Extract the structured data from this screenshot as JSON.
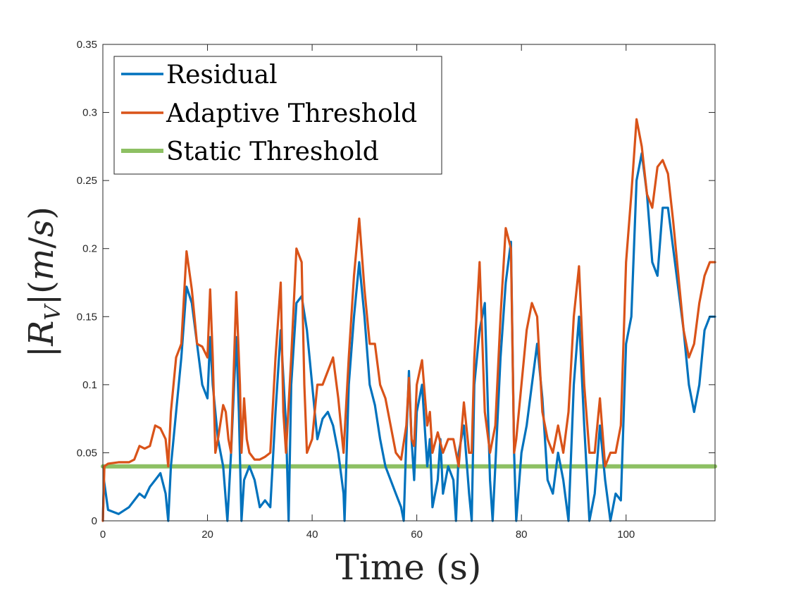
{
  "chart_data": {
    "type": "line",
    "xlabel": "Time (s)",
    "ylabel": "|R_V|(m/s)",
    "ylabel_parts": {
      "open": "|",
      "R": "R",
      "sub": "V",
      "mid": "|(",
      "m": "m",
      "slash": "/",
      "s": "s",
      "close": ")"
    },
    "xlim": [
      0,
      117
    ],
    "ylim": [
      0,
      0.35
    ],
    "x_ticks": [
      0,
      20,
      40,
      60,
      80,
      100
    ],
    "x_tick_labels": [
      "0",
      "20",
      "40",
      "60",
      "80",
      "100"
    ],
    "y_ticks": [
      0,
      0.05,
      0.1,
      0.15,
      0.2,
      0.25,
      0.3,
      0.35
    ],
    "y_tick_labels": [
      "0",
      "0.05",
      "0.1",
      "0.15",
      "0.2",
      "0.25",
      "0.3",
      "0.35"
    ],
    "grid": false,
    "legend_position": "top-left",
    "series": [
      {
        "name": "Residual",
        "color": "#0072BD",
        "points": [
          [
            0,
            0.0
          ],
          [
            0.2,
            0.03
          ],
          [
            1,
            0.008
          ],
          [
            3,
            0.005
          ],
          [
            5,
            0.01
          ],
          [
            7,
            0.02
          ],
          [
            8,
            0.017
          ],
          [
            9,
            0.025
          ],
          [
            10,
            0.03
          ],
          [
            11,
            0.035
          ],
          [
            12,
            0.02
          ],
          [
            12.5,
            0.0
          ],
          [
            13,
            0.04
          ],
          [
            14,
            0.08
          ],
          [
            15,
            0.12
          ],
          [
            16,
            0.172
          ],
          [
            17,
            0.16
          ],
          [
            18,
            0.13
          ],
          [
            19,
            0.1
          ],
          [
            20,
            0.09
          ],
          [
            20.5,
            0.135
          ],
          [
            21,
            0.1
          ],
          [
            22,
            0.06
          ],
          [
            23,
            0.04
          ],
          [
            23.8,
            0.0
          ],
          [
            24.5,
            0.05
          ],
          [
            25.5,
            0.135
          ],
          [
            26,
            0.08
          ],
          [
            26.5,
            0.0
          ],
          [
            27,
            0.03
          ],
          [
            28,
            0.04
          ],
          [
            29,
            0.03
          ],
          [
            30,
            0.01
          ],
          [
            31,
            0.015
          ],
          [
            32,
            0.01
          ],
          [
            33,
            0.08
          ],
          [
            34,
            0.14
          ],
          [
            35,
            0.07
          ],
          [
            35.5,
            0.0
          ],
          [
            36,
            0.1
          ],
          [
            37,
            0.16
          ],
          [
            38,
            0.165
          ],
          [
            39,
            0.14
          ],
          [
            40,
            0.1
          ],
          [
            41,
            0.06
          ],
          [
            42,
            0.075
          ],
          [
            43,
            0.08
          ],
          [
            44,
            0.07
          ],
          [
            45,
            0.05
          ],
          [
            46,
            0.02
          ],
          [
            46.2,
            0.0
          ],
          [
            47,
            0.1
          ],
          [
            48,
            0.15
          ],
          [
            49,
            0.19
          ],
          [
            50,
            0.15
          ],
          [
            51,
            0.1
          ],
          [
            52,
            0.085
          ],
          [
            53,
            0.06
          ],
          [
            54,
            0.04
          ],
          [
            55,
            0.03
          ],
          [
            56,
            0.02
          ],
          [
            57,
            0.01
          ],
          [
            57.5,
            0.0
          ],
          [
            58,
            0.06
          ],
          [
            58.5,
            0.11
          ],
          [
            59,
            0.06
          ],
          [
            59.5,
            0.03
          ],
          [
            60,
            0.08
          ],
          [
            61,
            0.1
          ],
          [
            62,
            0.04
          ],
          [
            62.5,
            0.06
          ],
          [
            63,
            0.01
          ],
          [
            64,
            0.03
          ],
          [
            64.5,
            0.06
          ],
          [
            65,
            0.02
          ],
          [
            66,
            0.04
          ],
          [
            67,
            0.03
          ],
          [
            67.5,
            0.0
          ],
          [
            68,
            0.05
          ],
          [
            69,
            0.07
          ],
          [
            70,
            0.02
          ],
          [
            70.5,
            0.0
          ],
          [
            71,
            0.1
          ],
          [
            72,
            0.14
          ],
          [
            73,
            0.16
          ],
          [
            74,
            0.03
          ],
          [
            74.5,
            0.0
          ],
          [
            75,
            0.04
          ],
          [
            76,
            0.12
          ],
          [
            77,
            0.175
          ],
          [
            78,
            0.205
          ],
          [
            78.6,
            0.05
          ],
          [
            79,
            0.0
          ],
          [
            80,
            0.05
          ],
          [
            81,
            0.07
          ],
          [
            82,
            0.1
          ],
          [
            83,
            0.13
          ],
          [
            84,
            0.09
          ],
          [
            85,
            0.03
          ],
          [
            86,
            0.02
          ],
          [
            87,
            0.05
          ],
          [
            88,
            0.03
          ],
          [
            89,
            0.0
          ],
          [
            90,
            0.1
          ],
          [
            91,
            0.15
          ],
          [
            92,
            0.07
          ],
          [
            93,
            0.0
          ],
          [
            94,
            0.02
          ],
          [
            95,
            0.07
          ],
          [
            96,
            0.03
          ],
          [
            97,
            0.0
          ],
          [
            98,
            0.02
          ],
          [
            99,
            0.015
          ],
          [
            100,
            0.13
          ],
          [
            101,
            0.15
          ],
          [
            102,
            0.25
          ],
          [
            103,
            0.27
          ],
          [
            104,
            0.24
          ],
          [
            105,
            0.19
          ],
          [
            106,
            0.18
          ],
          [
            107,
            0.23
          ],
          [
            108,
            0.23
          ],
          [
            109,
            0.2
          ],
          [
            110,
            0.17
          ],
          [
            111,
            0.14
          ],
          [
            112,
            0.1
          ],
          [
            113,
            0.08
          ],
          [
            114,
            0.1
          ],
          [
            115,
            0.14
          ],
          [
            116,
            0.15
          ],
          [
            117,
            0.15
          ]
        ]
      },
      {
        "name": "Adaptive Threshold",
        "color": "#D95319",
        "points": [
          [
            0,
            0.0
          ],
          [
            0.3,
            0.04
          ],
          [
            1,
            0.042
          ],
          [
            3,
            0.043
          ],
          [
            5,
            0.043
          ],
          [
            6,
            0.045
          ],
          [
            7,
            0.055
          ],
          [
            8,
            0.053
          ],
          [
            9,
            0.055
          ],
          [
            10,
            0.07
          ],
          [
            11,
            0.068
          ],
          [
            12,
            0.06
          ],
          [
            12.5,
            0.04
          ],
          [
            13,
            0.08
          ],
          [
            14,
            0.12
          ],
          [
            15,
            0.13
          ],
          [
            16,
            0.198
          ],
          [
            17,
            0.17
          ],
          [
            18,
            0.13
          ],
          [
            19,
            0.128
          ],
          [
            20,
            0.12
          ],
          [
            20.5,
            0.17
          ],
          [
            21,
            0.12
          ],
          [
            21.5,
            0.05
          ],
          [
            22,
            0.06
          ],
          [
            23,
            0.085
          ],
          [
            23.5,
            0.08
          ],
          [
            24,
            0.06
          ],
          [
            24.5,
            0.05
          ],
          [
            25.5,
            0.168
          ],
          [
            26.2,
            0.1
          ],
          [
            26.5,
            0.05
          ],
          [
            27,
            0.09
          ],
          [
            27.5,
            0.06
          ],
          [
            28,
            0.05
          ],
          [
            29,
            0.045
          ],
          [
            30,
            0.045
          ],
          [
            31,
            0.047
          ],
          [
            32,
            0.05
          ],
          [
            33,
            0.12
          ],
          [
            34,
            0.175
          ],
          [
            34.5,
            0.08
          ],
          [
            35,
            0.05
          ],
          [
            36,
            0.12
          ],
          [
            37,
            0.2
          ],
          [
            38,
            0.19
          ],
          [
            38.5,
            0.1
          ],
          [
            39,
            0.05
          ],
          [
            40,
            0.06
          ],
          [
            41,
            0.1
          ],
          [
            42,
            0.1
          ],
          [
            43,
            0.11
          ],
          [
            44,
            0.12
          ],
          [
            45,
            0.09
          ],
          [
            46,
            0.05
          ],
          [
            47,
            0.12
          ],
          [
            48,
            0.18
          ],
          [
            49,
            0.222
          ],
          [
            50,
            0.17
          ],
          [
            51,
            0.13
          ],
          [
            52,
            0.13
          ],
          [
            53,
            0.1
          ],
          [
            54,
            0.09
          ],
          [
            55,
            0.07
          ],
          [
            56,
            0.05
          ],
          [
            57,
            0.045
          ],
          [
            58,
            0.07
          ],
          [
            58.5,
            0.105
          ],
          [
            59,
            0.06
          ],
          [
            59.5,
            0.055
          ],
          [
            60,
            0.1
          ],
          [
            61,
            0.118
          ],
          [
            62,
            0.07
          ],
          [
            62.5,
            0.08
          ],
          [
            63,
            0.05
          ],
          [
            64,
            0.065
          ],
          [
            65,
            0.05
          ],
          [
            66,
            0.06
          ],
          [
            67,
            0.06
          ],
          [
            68,
            0.04
          ],
          [
            69,
            0.087
          ],
          [
            70,
            0.05
          ],
          [
            70.5,
            0.05
          ],
          [
            71,
            0.12
          ],
          [
            72,
            0.19
          ],
          [
            73,
            0.08
          ],
          [
            74,
            0.05
          ],
          [
            75,
            0.07
          ],
          [
            76,
            0.15
          ],
          [
            77,
            0.215
          ],
          [
            78,
            0.2
          ],
          [
            78.6,
            0.05
          ],
          [
            79,
            0.06
          ],
          [
            80,
            0.1
          ],
          [
            81,
            0.14
          ],
          [
            82,
            0.16
          ],
          [
            83,
            0.15
          ],
          [
            84,
            0.08
          ],
          [
            85,
            0.06
          ],
          [
            86,
            0.05
          ],
          [
            87,
            0.07
          ],
          [
            88,
            0.05
          ],
          [
            89,
            0.08
          ],
          [
            90,
            0.15
          ],
          [
            91,
            0.187
          ],
          [
            92,
            0.1
          ],
          [
            93,
            0.05
          ],
          [
            94,
            0.05
          ],
          [
            95,
            0.09
          ],
          [
            96,
            0.04
          ],
          [
            97,
            0.05
          ],
          [
            98,
            0.05
          ],
          [
            99,
            0.07
          ],
          [
            100,
            0.19
          ],
          [
            101,
            0.24
          ],
          [
            102,
            0.295
          ],
          [
            103,
            0.275
          ],
          [
            104,
            0.24
          ],
          [
            105,
            0.23
          ],
          [
            106,
            0.26
          ],
          [
            107,
            0.265
          ],
          [
            108,
            0.255
          ],
          [
            109,
            0.22
          ],
          [
            110,
            0.18
          ],
          [
            111,
            0.14
          ],
          [
            112,
            0.12
          ],
          [
            113,
            0.13
          ],
          [
            114,
            0.16
          ],
          [
            115,
            0.18
          ],
          [
            116,
            0.19
          ],
          [
            117,
            0.19
          ]
        ]
      },
      {
        "name": "Static Threshold",
        "color": "#8DC063",
        "points": [
          [
            0,
            0.04
          ],
          [
            117,
            0.04
          ]
        ]
      }
    ]
  }
}
